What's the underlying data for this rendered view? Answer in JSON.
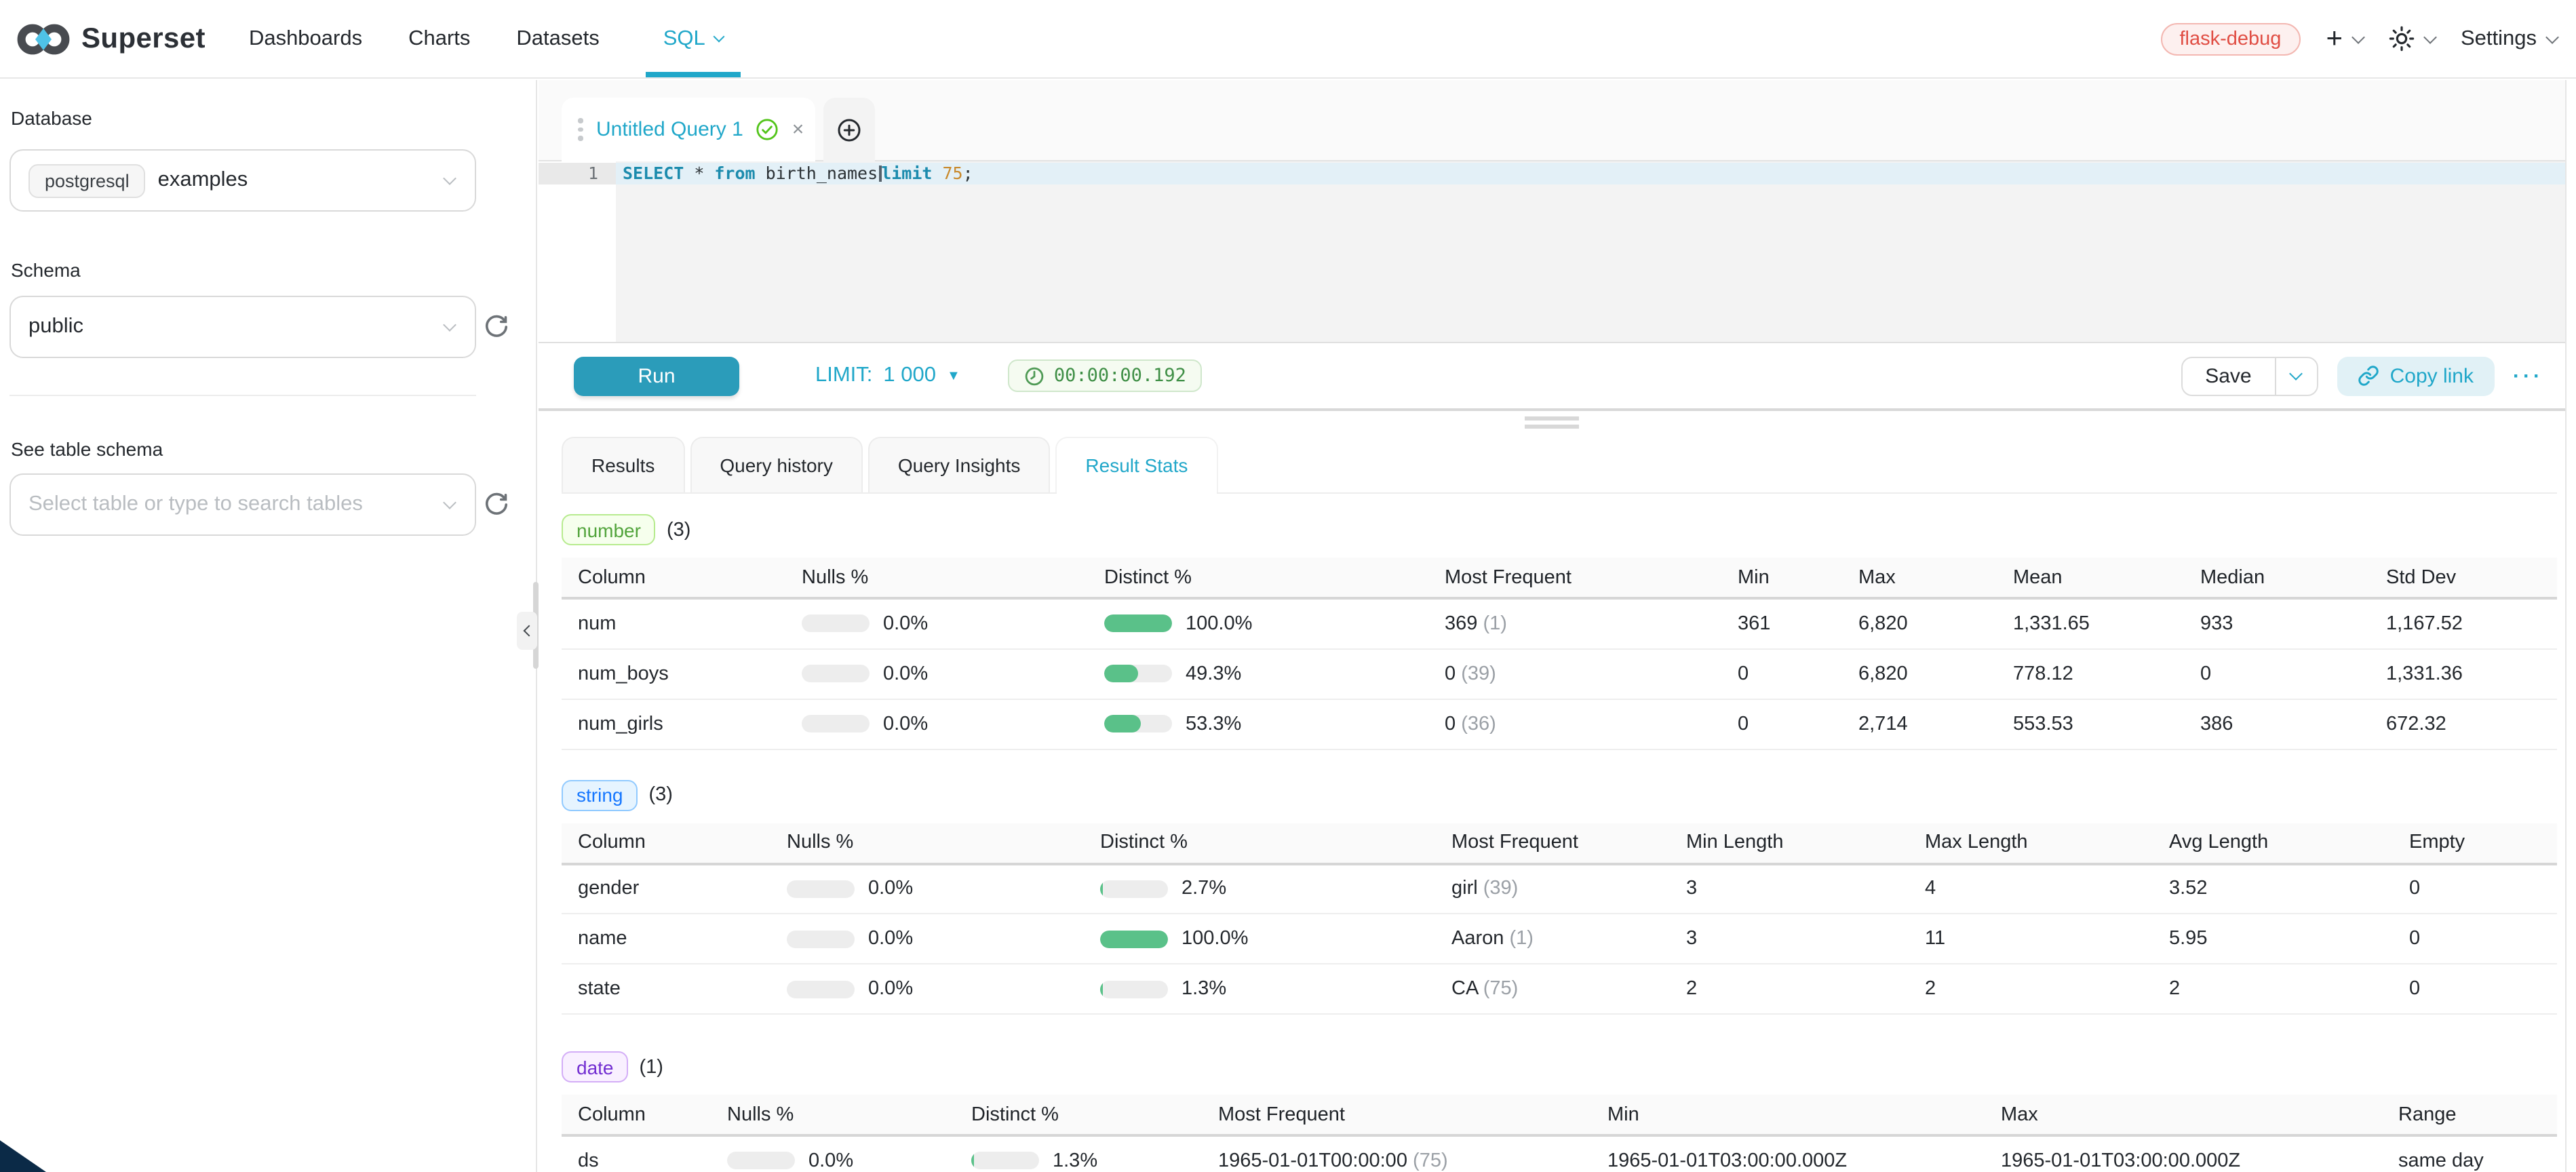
{
  "colors": {
    "accent": "#20a7c9",
    "run_button": "#2b9cba",
    "keyword": "#1b8bad",
    "number_literal": "#c98a2d",
    "active_line": "#e3f0f7",
    "env_badge_text": "#e04d43",
    "env_badge_bg": "#fdf0ef",
    "env_badge_border": "#f3b7b1",
    "timer_text": "#3f8f46",
    "timer_bg": "#f5fbf1",
    "timer_border": "#cfe7cb",
    "bar_fill": "#5ac189",
    "bar_track": "#ededed",
    "badge_number_text": "#52a43c",
    "badge_number_bg": "#f6ffed",
    "badge_number_border": "#b7eb8f",
    "badge_string_text": "#1677ff",
    "badge_string_bg": "#e6f4ff",
    "badge_string_border": "#91caff",
    "badge_date_text": "#722ed1",
    "badge_date_bg": "#f9f0ff",
    "badge_date_border": "#d3adf7"
  },
  "icons": {
    "plus": "+",
    "more": "···",
    "close": "×"
  },
  "navbar": {
    "brand": "Superset",
    "items": [
      {
        "label": "Dashboards"
      },
      {
        "label": "Charts"
      },
      {
        "label": "Datasets"
      },
      {
        "label": "SQL",
        "active": true
      }
    ],
    "env_badge": "flask-debug",
    "settings_label": "Settings"
  },
  "sidebar": {
    "database_label": "Database",
    "database_engine": "postgresql",
    "database_name": "examples",
    "schema_label": "Schema",
    "schema_value": "public",
    "table_schema_label": "See table schema",
    "table_select_placeholder": "Select table or type to search tables"
  },
  "query_tab": {
    "title": "Untitled Query 1"
  },
  "editor": {
    "line_number": "1",
    "sql": {
      "select": "SELECT",
      "star": "*",
      "from": "from",
      "table": "birth_names",
      "limit": "limit",
      "value": "75",
      "semicolon": ";"
    }
  },
  "toolbar": {
    "run_label": "Run",
    "limit_label": "LIMIT:",
    "limit_value": "1 000",
    "limit_caret": "▼",
    "elapsed_time": "00:00:00.192",
    "save_label": "Save",
    "copy_link_label": "Copy link"
  },
  "result_tabs": {
    "tabs": [
      {
        "label": "Results"
      },
      {
        "label": "Query history"
      },
      {
        "label": "Query Insights"
      },
      {
        "label": "Result Stats",
        "active": true
      }
    ]
  },
  "stats": {
    "number": {
      "badge": "number",
      "count": "(3)",
      "headers": [
        "Column",
        "Nulls %",
        "Distinct %",
        "Most Frequent",
        "Min",
        "Max",
        "Mean",
        "Median",
        "Std Dev"
      ],
      "rows": [
        {
          "column": "num",
          "nulls_pct": "0.0%",
          "nulls_value": 0,
          "distinct_pct": "100.0%",
          "distinct_value": 100,
          "most_frequent": "369",
          "most_frequent_count": "(1)",
          "cells": [
            "361",
            "6,820",
            "1,331.65",
            "933",
            "1,167.52"
          ]
        },
        {
          "column": "num_boys",
          "nulls_pct": "0.0%",
          "nulls_value": 0,
          "distinct_pct": "49.3%",
          "distinct_value": 49.3,
          "most_frequent": "0",
          "most_frequent_count": "(39)",
          "cells": [
            "0",
            "6,820",
            "778.12",
            "0",
            "1,331.36"
          ]
        },
        {
          "column": "num_girls",
          "nulls_pct": "0.0%",
          "nulls_value": 0,
          "distinct_pct": "53.3%",
          "distinct_value": 53.3,
          "most_frequent": "0",
          "most_frequent_count": "(36)",
          "cells": [
            "0",
            "2,714",
            "553.53",
            "386",
            "672.32"
          ]
        }
      ]
    },
    "string": {
      "badge": "string",
      "count": "(3)",
      "headers": [
        "Column",
        "Nulls %",
        "Distinct %",
        "Most Frequent",
        "Min Length",
        "Max Length",
        "Avg Length",
        "Empty"
      ],
      "rows": [
        {
          "column": "gender",
          "nulls_pct": "0.0%",
          "nulls_value": 0,
          "distinct_pct": "2.7%",
          "distinct_value": 2.7,
          "most_frequent": "girl",
          "most_frequent_count": "(39)",
          "cells": [
            "3",
            "4",
            "3.52",
            "0"
          ]
        },
        {
          "column": "name",
          "nulls_pct": "0.0%",
          "nulls_value": 0,
          "distinct_pct": "100.0%",
          "distinct_value": 100,
          "most_frequent": "Aaron",
          "most_frequent_count": "(1)",
          "cells": [
            "3",
            "11",
            "5.95",
            "0"
          ]
        },
        {
          "column": "state",
          "nulls_pct": "0.0%",
          "nulls_value": 0,
          "distinct_pct": "1.3%",
          "distinct_value": 1.3,
          "most_frequent": "CA",
          "most_frequent_count": "(75)",
          "cells": [
            "2",
            "2",
            "2",
            "0"
          ]
        }
      ]
    },
    "date": {
      "badge": "date",
      "count": "(1)",
      "headers": [
        "Column",
        "Nulls %",
        "Distinct %",
        "Most Frequent",
        "Min",
        "Max",
        "Range"
      ],
      "rows": [
        {
          "column": "ds",
          "nulls_pct": "0.0%",
          "nulls_value": 0,
          "distinct_pct": "1.3%",
          "distinct_value": 1.3,
          "most_frequent": "1965-01-01T00:00:00",
          "most_frequent_count": "(75)",
          "cells": [
            "1965-01-01T03:00:00.000Z",
            "1965-01-01T03:00:00.000Z",
            "same day"
          ]
        }
      ]
    }
  }
}
